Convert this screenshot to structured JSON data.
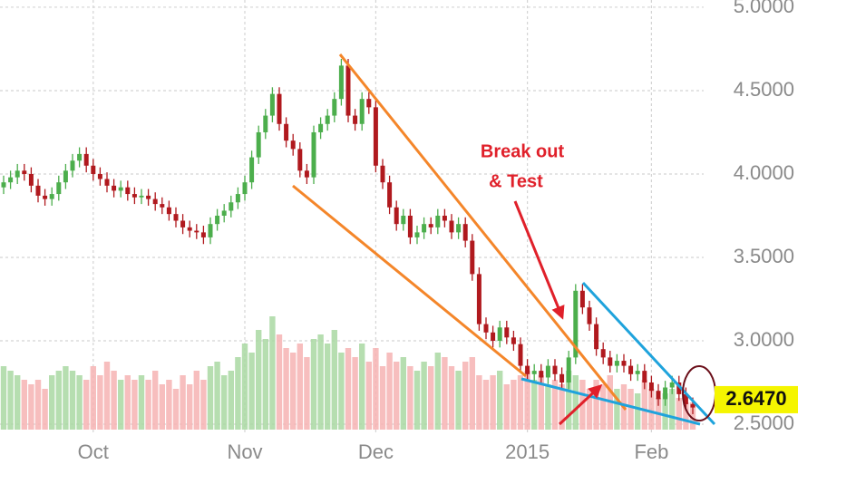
{
  "chart_data": {
    "type": "candlestick",
    "categories": [
      null,
      null,
      null,
      null,
      null,
      null,
      null,
      null,
      null,
      null,
      null,
      null,
      null,
      "Oct",
      null,
      null,
      null,
      null,
      null,
      null,
      null,
      null,
      null,
      null,
      null,
      null,
      null,
      null,
      null,
      null,
      null,
      null,
      null,
      null,
      null,
      "Nov",
      null,
      null,
      null,
      null,
      null,
      null,
      null,
      null,
      null,
      null,
      null,
      null,
      null,
      null,
      null,
      null,
      null,
      null,
      "Dec",
      null,
      null,
      null,
      null,
      null,
      null,
      null,
      null,
      null,
      null,
      null,
      null,
      null,
      null,
      null,
      null,
      null,
      null,
      null,
      null,
      null,
      "2015",
      null,
      null,
      null,
      null,
      null,
      null,
      null,
      null,
      null,
      null,
      null,
      null,
      null,
      null,
      null,
      null,
      null,
      "Feb",
      null,
      null,
      null,
      null,
      null,
      null
    ],
    "open": [
      3.92,
      3.95,
      3.98,
      4.02,
      4.0,
      3.93,
      3.87,
      3.85,
      3.88,
      3.95,
      4.02,
      4.08,
      4.12,
      4.05,
      4.0,
      3.97,
      3.93,
      3.9,
      3.92,
      3.88,
      3.86,
      3.87,
      3.85,
      3.82,
      3.8,
      3.76,
      3.72,
      3.68,
      3.66,
      3.65,
      3.62,
      3.7,
      3.75,
      3.78,
      3.83,
      3.88,
      3.95,
      4.1,
      4.25,
      4.35,
      4.48,
      4.3,
      4.2,
      4.15,
      4.02,
      3.98,
      4.25,
      4.3,
      4.35,
      4.45,
      4.65,
      4.35,
      4.3,
      4.45,
      4.4,
      4.05,
      3.95,
      3.8,
      3.7,
      3.75,
      3.62,
      3.65,
      3.7,
      3.68,
      3.75,
      3.72,
      3.65,
      3.7,
      3.6,
      3.4,
      3.1,
      3.05,
      3.0,
      3.08,
      3.02,
      2.98,
      2.85,
      2.8,
      2.82,
      2.78,
      2.85,
      2.8,
      2.75,
      2.9,
      3.3,
      3.2,
      3.1,
      2.95,
      2.9,
      2.85,
      2.88,
      2.85,
      2.8,
      2.82,
      2.75,
      2.7,
      2.65,
      2.72,
      2.75,
      2.68,
      2.62
    ],
    "high": [
      3.99,
      4.02,
      4.06,
      4.06,
      4.04,
      3.97,
      3.91,
      3.92,
      3.99,
      4.06,
      4.12,
      4.16,
      4.16,
      4.09,
      4.04,
      4.01,
      3.97,
      3.96,
      3.96,
      3.92,
      3.91,
      3.91,
      3.89,
      3.86,
      3.84,
      3.8,
      3.76,
      3.72,
      3.7,
      3.69,
      3.74,
      3.79,
      3.82,
      3.87,
      3.92,
      3.99,
      4.14,
      4.29,
      4.39,
      4.52,
      4.52,
      4.34,
      4.24,
      4.19,
      4.06,
      4.29,
      4.34,
      4.39,
      4.49,
      4.69,
      4.69,
      4.39,
      4.49,
      4.49,
      4.44,
      4.09,
      3.99,
      3.84,
      3.79,
      3.79,
      3.69,
      3.74,
      3.74,
      3.79,
      3.79,
      3.76,
      3.74,
      3.74,
      3.64,
      3.44,
      3.14,
      3.09,
      3.12,
      3.12,
      3.06,
      3.02,
      2.89,
      2.86,
      2.86,
      2.89,
      2.89,
      2.84,
      2.94,
      3.34,
      3.34,
      3.24,
      3.14,
      2.99,
      2.94,
      2.92,
      2.92,
      2.89,
      2.86,
      2.86,
      2.79,
      2.74,
      2.76,
      2.79,
      2.79,
      2.72,
      2.66
    ],
    "low": [
      3.88,
      3.91,
      3.94,
      3.96,
      3.89,
      3.83,
      3.81,
      3.81,
      3.84,
      3.91,
      3.98,
      4.04,
      4.01,
      3.96,
      3.93,
      3.89,
      3.86,
      3.86,
      3.84,
      3.82,
      3.82,
      3.81,
      3.78,
      3.76,
      3.72,
      3.68,
      3.64,
      3.62,
      3.61,
      3.58,
      3.58,
      3.66,
      3.71,
      3.74,
      3.79,
      3.84,
      3.91,
      4.06,
      4.21,
      4.31,
      4.26,
      4.16,
      4.11,
      3.98,
      3.94,
      3.94,
      4.21,
      4.26,
      4.31,
      4.41,
      4.31,
      4.26,
      4.26,
      4.36,
      4.01,
      3.91,
      3.76,
      3.66,
      3.66,
      3.58,
      3.58,
      3.61,
      3.64,
      3.64,
      3.68,
      3.61,
      3.61,
      3.56,
      3.36,
      3.06,
      3.01,
      2.96,
      2.96,
      2.98,
      2.94,
      2.81,
      2.76,
      2.76,
      2.74,
      2.74,
      2.76,
      2.71,
      2.71,
      2.86,
      3.16,
      3.06,
      2.91,
      2.86,
      2.81,
      2.81,
      2.81,
      2.76,
      2.76,
      2.71,
      2.66,
      2.61,
      2.61,
      2.68,
      2.64,
      2.58,
      2.56
    ],
    "close": [
      3.95,
      3.98,
      4.02,
      4.0,
      3.93,
      3.87,
      3.85,
      3.88,
      3.95,
      4.02,
      4.08,
      4.12,
      4.05,
      4.0,
      3.97,
      3.93,
      3.9,
      3.92,
      3.88,
      3.86,
      3.87,
      3.85,
      3.82,
      3.8,
      3.76,
      3.72,
      3.68,
      3.66,
      3.65,
      3.62,
      3.7,
      3.75,
      3.78,
      3.83,
      3.88,
      3.95,
      4.1,
      4.25,
      4.35,
      4.48,
      4.3,
      4.2,
      4.15,
      4.02,
      3.98,
      4.25,
      4.3,
      4.35,
      4.45,
      4.65,
      4.35,
      4.3,
      4.45,
      4.4,
      4.05,
      3.95,
      3.8,
      3.7,
      3.75,
      3.62,
      3.65,
      3.7,
      3.68,
      3.75,
      3.72,
      3.65,
      3.7,
      3.6,
      3.4,
      3.1,
      3.05,
      3.0,
      3.08,
      3.02,
      2.98,
      2.85,
      2.8,
      2.82,
      2.78,
      2.85,
      2.8,
      2.75,
      2.9,
      3.3,
      3.2,
      3.1,
      2.95,
      2.9,
      2.85,
      2.88,
      2.85,
      2.8,
      2.82,
      2.75,
      2.7,
      2.65,
      2.72,
      2.75,
      2.68,
      2.62,
      2.6
    ],
    "volume": [
      70,
      65,
      60,
      55,
      50,
      55,
      45,
      60,
      65,
      70,
      65,
      60,
      55,
      70,
      60,
      75,
      65,
      55,
      60,
      55,
      60,
      55,
      65,
      50,
      55,
      45,
      60,
      50,
      65,
      55,
      70,
      75,
      60,
      65,
      80,
      95,
      85,
      110,
      100,
      125,
      105,
      90,
      85,
      95,
      80,
      100,
      105,
      95,
      110,
      85,
      90,
      80,
      95,
      75,
      90,
      70,
      85,
      75,
      80,
      70,
      65,
      75,
      70,
      85,
      80,
      70,
      65,
      75,
      80,
      60,
      55,
      60,
      65,
      50,
      55,
      60,
      65,
      55,
      60,
      50,
      55,
      50,
      65,
      60,
      55,
      45,
      55,
      50,
      60,
      45,
      50,
      45,
      40,
      55,
      45,
      35,
      40,
      45,
      35,
      30,
      30
    ],
    "colors": {
      "up": "#4cae4c",
      "down": "#b0191e",
      "volume_up": "#a9d8a2",
      "volume_down": "#f6b3b3"
    },
    "ylim": [
      2.45,
      5.04
    ],
    "yticks": [
      {
        "value": 2.5,
        "label": "2.5000"
      },
      {
        "value": 3,
        "label": "3.0000"
      },
      {
        "value": 3.5,
        "label": "3.5000"
      },
      {
        "value": 4,
        "label": "4.0000"
      },
      {
        "value": 4.5,
        "label": "4.5000"
      },
      {
        "value": 5,
        "label": "5.0000"
      }
    ],
    "grid": true,
    "last_price": {
      "value": 2.647,
      "label": "2.6470"
    },
    "annotations": [
      "Break out",
      "& Test"
    ]
  }
}
